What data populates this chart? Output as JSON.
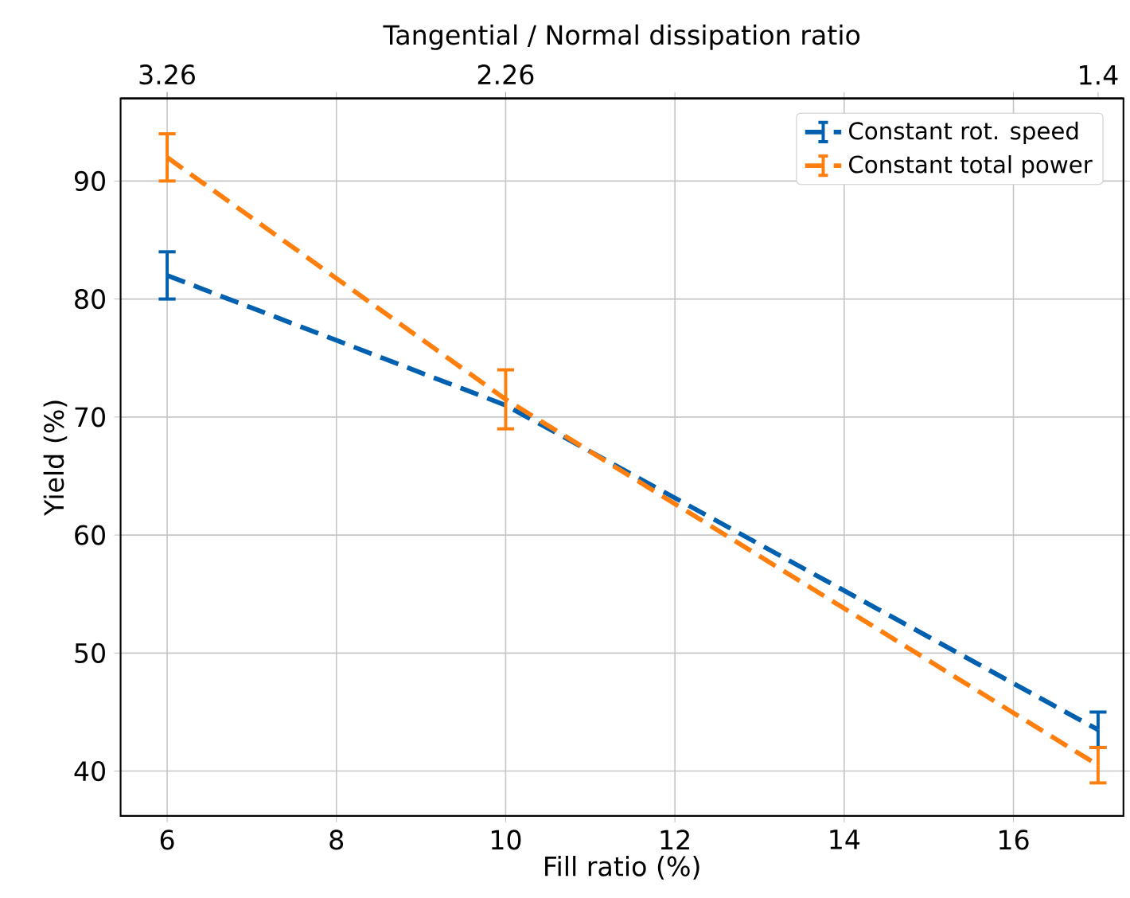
{
  "chart_data": {
    "type": "line",
    "xlabel": "Fill ratio (%)",
    "ylabel": "Yield (%)",
    "x2label": "Tangential / Normal dissipation ratio",
    "x": [
      6,
      10,
      17
    ],
    "series": [
      {
        "name": "Constant rot. speed",
        "color": "#0060b0",
        "values": [
          82,
          71,
          43.5
        ],
        "errors": [
          2,
          null,
          1.5
        ]
      },
      {
        "name": "Constant total power",
        "color": "#ff7f0e",
        "values": [
          92,
          71.5,
          40.5
        ],
        "errors": [
          2,
          2.5,
          1.5
        ]
      }
    ],
    "xlim": [
      5.45,
      17.3
    ],
    "ylim": [
      36.2,
      97
    ],
    "xticks": [
      6,
      8,
      10,
      12,
      14,
      16
    ],
    "yticks": [
      40,
      50,
      60,
      70,
      80,
      90
    ],
    "annotations": [
      {
        "text": "3.26",
        "x": 6
      },
      {
        "text": "2.26",
        "x": 10
      },
      {
        "text": "1.4",
        "x": 17
      }
    ],
    "grid": true,
    "legend": "top right",
    "line_style": "dashed",
    "marker": "none"
  }
}
